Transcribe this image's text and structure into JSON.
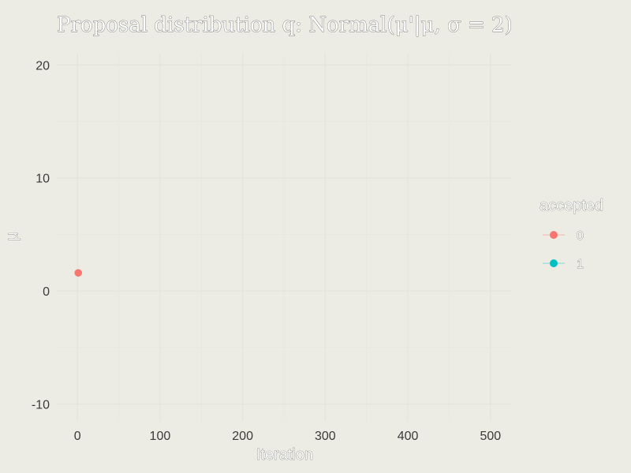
{
  "chart_data": {
    "type": "scatter",
    "title": "Proposal distribution q: Normal(μ'|μ, σ = 2)",
    "xlabel": "Iteration",
    "ylabel": "μ",
    "xlim": [
      -25,
      525
    ],
    "ylim": [
      -11.5,
      21
    ],
    "x_ticks": [
      0,
      100,
      200,
      300,
      400,
      500
    ],
    "y_ticks": [
      -10,
      0,
      10,
      20
    ],
    "x_tick_labels": [
      "0",
      "100",
      "200",
      "300",
      "400",
      "500"
    ],
    "y_tick_labels": [
      "-10",
      "0",
      "10",
      "20"
    ],
    "grid": true,
    "legend": {
      "title": "accepted",
      "placement": "right",
      "entries": [
        {
          "label": "0",
          "color": "#f8766d"
        },
        {
          "label": "1",
          "color": "#00bfc4"
        }
      ]
    },
    "series": [
      {
        "name": "0",
        "color": "#f8766d",
        "points": [
          {
            "x": 1,
            "y": 1.6
          }
        ]
      },
      {
        "name": "1",
        "color": "#00bfc4",
        "points": []
      }
    ]
  }
}
